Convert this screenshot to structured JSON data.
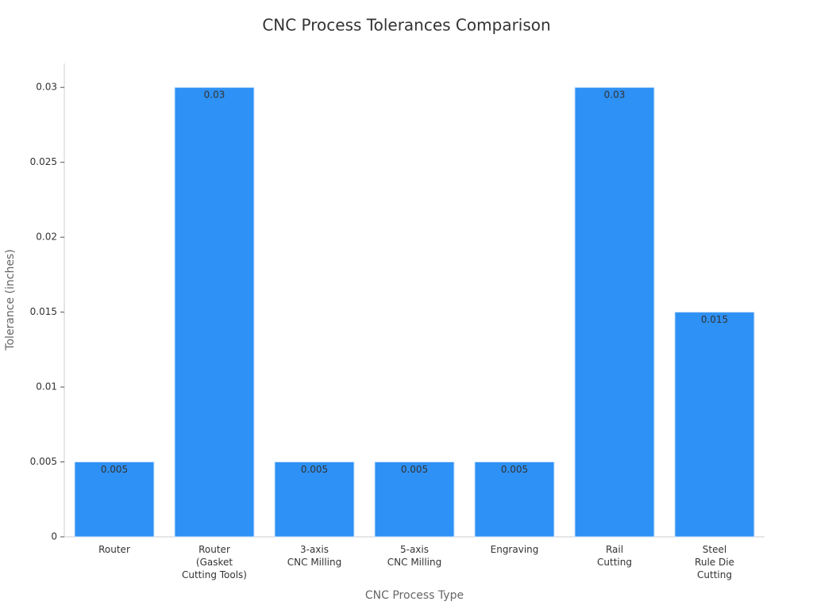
{
  "chart_data": {
    "type": "bar",
    "title": "CNC Process Tolerances Comparison",
    "x_label": "CNC Process Type",
    "y_label": "Tolerance (inches)",
    "categories": [
      [
        "Router"
      ],
      [
        "Router",
        "(Gasket",
        "Cutting Tools)"
      ],
      [
        "3-axis",
        "CNC Milling"
      ],
      [
        "5-axis",
        "CNC Milling"
      ],
      [
        "Engraving"
      ],
      [
        "Rail",
        "Cutting"
      ],
      [
        "Steel",
        "Rule Die",
        "Cutting"
      ]
    ],
    "values": [
      0.005,
      0.03,
      0.005,
      0.005,
      0.005,
      0.03,
      0.015
    ],
    "color": "#2e91f5",
    "ylim": [
      0,
      0.0316
    ],
    "yticks": [
      0,
      0.005,
      0.01,
      0.015,
      0.02,
      0.025,
      0.03
    ],
    "grid": false
  }
}
